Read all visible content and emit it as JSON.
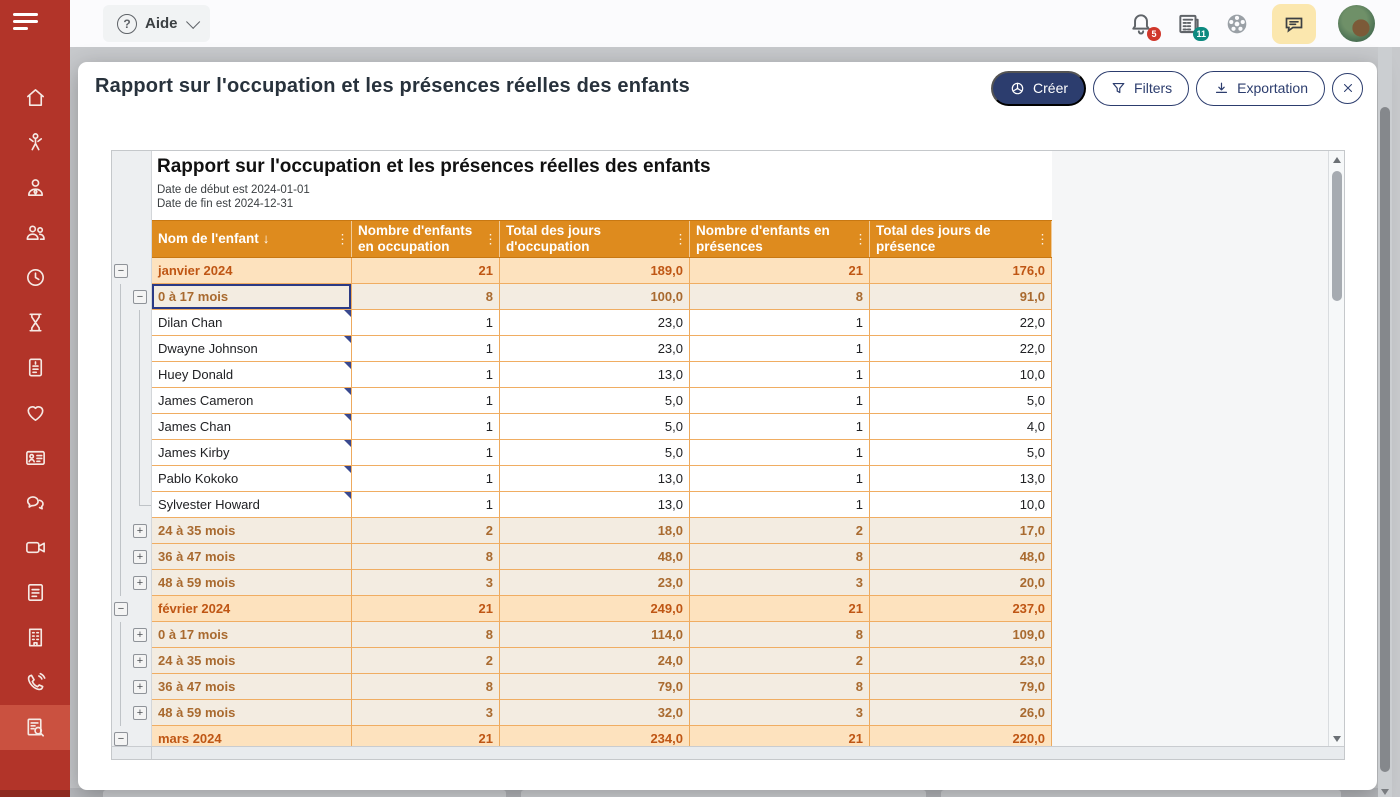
{
  "topbar": {
    "help_label": "Aide",
    "notification_count": "5",
    "news_count": "11"
  },
  "sidebar": {
    "items": [
      {
        "name": "home"
      },
      {
        "name": "children"
      },
      {
        "name": "educators"
      },
      {
        "name": "families"
      },
      {
        "name": "schedule"
      },
      {
        "name": "waiting-list"
      },
      {
        "name": "billing"
      },
      {
        "name": "health"
      },
      {
        "name": "contact-cards"
      },
      {
        "name": "messages"
      },
      {
        "name": "video"
      },
      {
        "name": "notes"
      },
      {
        "name": "facility"
      },
      {
        "name": "calls"
      },
      {
        "name": "reports",
        "active": true
      }
    ]
  },
  "modal": {
    "title": "Rapport sur l'occupation et les présences réelles des enfants",
    "create_label": "Créer",
    "filters_label": "Filters",
    "export_label": "Exportation"
  },
  "report": {
    "title": "Rapport sur l'occupation et les présences réelles des enfants",
    "date_start": "Date de début est 2024-01-01",
    "date_end": "Date de fin est 2024-12-31"
  },
  "table": {
    "columns": [
      {
        "label": "Nom de l'enfant",
        "sort": "↓"
      },
      {
        "label": "Nombre d'enfants en occupation",
        "sort": ""
      },
      {
        "label": "Total des jours d'occupation",
        "sort": ""
      },
      {
        "label": "Nombre d'enfants en présences",
        "sort": ""
      },
      {
        "label": "Total des jours de présence",
        "sort": ""
      }
    ],
    "rows": [
      {
        "kind": "month",
        "exp": "minus",
        "label": "janvier 2024",
        "values": [
          "21",
          "189,0",
          "21",
          "176,0"
        ],
        "l1": false,
        "l2": false,
        "elbow": false,
        "note": false,
        "focused": false
      },
      {
        "kind": "group",
        "exp": "minus",
        "label": "0 à 17 mois",
        "values": [
          "8",
          "100,0",
          "8",
          "91,0"
        ],
        "l1": true,
        "l2": false,
        "elbow": false,
        "note": false,
        "focused": true
      },
      {
        "kind": "child",
        "exp": "",
        "label": "Dilan Chan",
        "values": [
          "1",
          "23,0",
          "1",
          "22,0"
        ],
        "l1": true,
        "l2": true,
        "elbow": false,
        "note": true,
        "focused": false
      },
      {
        "kind": "child",
        "exp": "",
        "label": "Dwayne Johnson",
        "values": [
          "1",
          "23,0",
          "1",
          "22,0"
        ],
        "l1": true,
        "l2": true,
        "elbow": false,
        "note": true,
        "focused": false
      },
      {
        "kind": "child",
        "exp": "",
        "label": "Huey Donald",
        "values": [
          "1",
          "13,0",
          "1",
          "10,0"
        ],
        "l1": true,
        "l2": true,
        "elbow": false,
        "note": true,
        "focused": false
      },
      {
        "kind": "child",
        "exp": "",
        "label": "James Cameron",
        "values": [
          "1",
          "5,0",
          "1",
          "5,0"
        ],
        "l1": true,
        "l2": true,
        "elbow": false,
        "note": true,
        "focused": false
      },
      {
        "kind": "child",
        "exp": "",
        "label": "James Chan",
        "values": [
          "1",
          "5,0",
          "1",
          "4,0"
        ],
        "l1": true,
        "l2": true,
        "elbow": false,
        "note": true,
        "focused": false
      },
      {
        "kind": "child",
        "exp": "",
        "label": "James Kirby",
        "values": [
          "1",
          "5,0",
          "1",
          "5,0"
        ],
        "l1": true,
        "l2": true,
        "elbow": false,
        "note": true,
        "focused": false
      },
      {
        "kind": "child",
        "exp": "",
        "label": "Pablo Kokoko",
        "values": [
          "1",
          "13,0",
          "1",
          "13,0"
        ],
        "l1": true,
        "l2": true,
        "elbow": false,
        "note": true,
        "focused": false
      },
      {
        "kind": "child",
        "exp": "",
        "label": "Sylvester Howard",
        "values": [
          "1",
          "13,0",
          "1",
          "10,0"
        ],
        "l1": true,
        "l2": true,
        "elbow": true,
        "note": true,
        "focused": false
      },
      {
        "kind": "group",
        "exp": "plus",
        "label": "24 à 35 mois",
        "values": [
          "2",
          "18,0",
          "2",
          "17,0"
        ],
        "l1": true,
        "l2": false,
        "elbow": false,
        "note": false,
        "focused": false
      },
      {
        "kind": "group",
        "exp": "plus",
        "label": "36 à 47 mois",
        "values": [
          "8",
          "48,0",
          "8",
          "48,0"
        ],
        "l1": true,
        "l2": false,
        "elbow": false,
        "note": false,
        "focused": false
      },
      {
        "kind": "group",
        "exp": "plus",
        "label": "48 à 59 mois",
        "values": [
          "3",
          "23,0",
          "3",
          "20,0"
        ],
        "l1": true,
        "l2": false,
        "elbow": false,
        "note": false,
        "focused": false
      },
      {
        "kind": "month",
        "exp": "minus",
        "label": "février 2024",
        "values": [
          "21",
          "249,0",
          "21",
          "237,0"
        ],
        "l1": false,
        "l2": false,
        "elbow": false,
        "note": false,
        "focused": false
      },
      {
        "kind": "group",
        "exp": "plus",
        "label": "0 à 17 mois",
        "values": [
          "8",
          "114,0",
          "8",
          "109,0"
        ],
        "l1": true,
        "l2": false,
        "elbow": false,
        "note": false,
        "focused": false
      },
      {
        "kind": "group",
        "exp": "plus",
        "label": "24 à 35 mois",
        "values": [
          "2",
          "24,0",
          "2",
          "23,0"
        ],
        "l1": true,
        "l2": false,
        "elbow": false,
        "note": false,
        "focused": false
      },
      {
        "kind": "group",
        "exp": "plus",
        "label": "36 à 47 mois",
        "values": [
          "8",
          "79,0",
          "8",
          "79,0"
        ],
        "l1": true,
        "l2": false,
        "elbow": false,
        "note": false,
        "focused": false
      },
      {
        "kind": "group",
        "exp": "plus",
        "label": "48 à 59 mois",
        "values": [
          "3",
          "32,0",
          "3",
          "26,0"
        ],
        "l1": true,
        "l2": false,
        "elbow": false,
        "note": false,
        "focused": false
      },
      {
        "kind": "month",
        "exp": "minus",
        "label": "mars 2024",
        "values": [
          "21",
          "234,0",
          "21",
          "220,0"
        ],
        "l1": false,
        "l2": false,
        "elbow": false,
        "note": false,
        "focused": false
      }
    ]
  },
  "colors": {
    "sidebar_red": "#b23429",
    "sidebar_active": "#ca5140",
    "header_orange": "#de8b1e",
    "month_row_bg": "#fde2be",
    "group_row_bg": "#f3ece1",
    "month_text": "#bf5614",
    "navy_accent": "#2c3d6e",
    "badge_red": "#d0372b",
    "badge_teal": "#0d8a80",
    "chat_cream": "#fbe7ae"
  }
}
